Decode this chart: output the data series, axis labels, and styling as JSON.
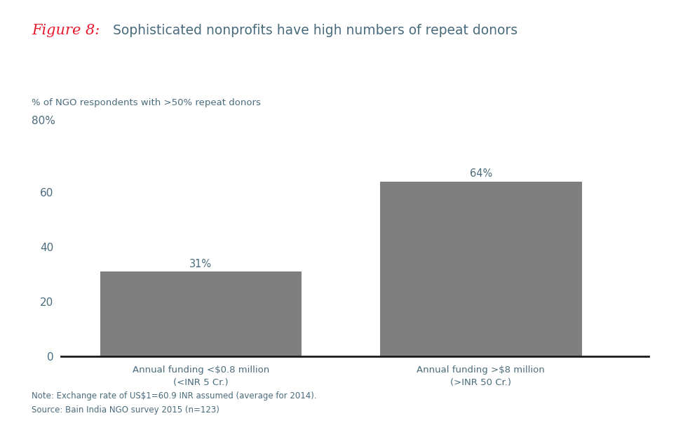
{
  "categories": [
    "Annual funding <$0.8 million\n(<INR 5 Cr.)",
    "Annual funding >$8 million\n(>INR 50 Cr.)"
  ],
  "values": [
    31,
    64
  ],
  "bar_color": "#7f7f7f",
  "bar_labels": [
    "31%",
    "64%"
  ],
  "title_italic": "Figure 8:",
  "title_italic_color": "#e8192c",
  "title_rest": "  Sophisticated nonprofits have high numbers of repeat donors",
  "title_rest_color": "#4a6b7c",
  "ylabel_line1": "% of NGO respondents with >50% repeat donors",
  "ylabel_line2": "80%",
  "ylabel_color": "#4a6b7c",
  "ylim": [
    0,
    80
  ],
  "yticks": [
    0,
    20,
    40,
    60
  ],
  "ytick_labels": [
    "0",
    "20",
    "40",
    "60"
  ],
  "note_line1": "Note: Exchange rate of US$1=60.9 INR assumed (average for 2014).",
  "note_line2": "Source: Bain India NGO survey 2015 (n=123)",
  "note_color": "#4a6b7c",
  "background_color": "#ffffff",
  "bar_label_color": "#4a6b7c",
  "tick_color": "#4a6b7c",
  "bottom_spine_color": "#1a1a1a"
}
